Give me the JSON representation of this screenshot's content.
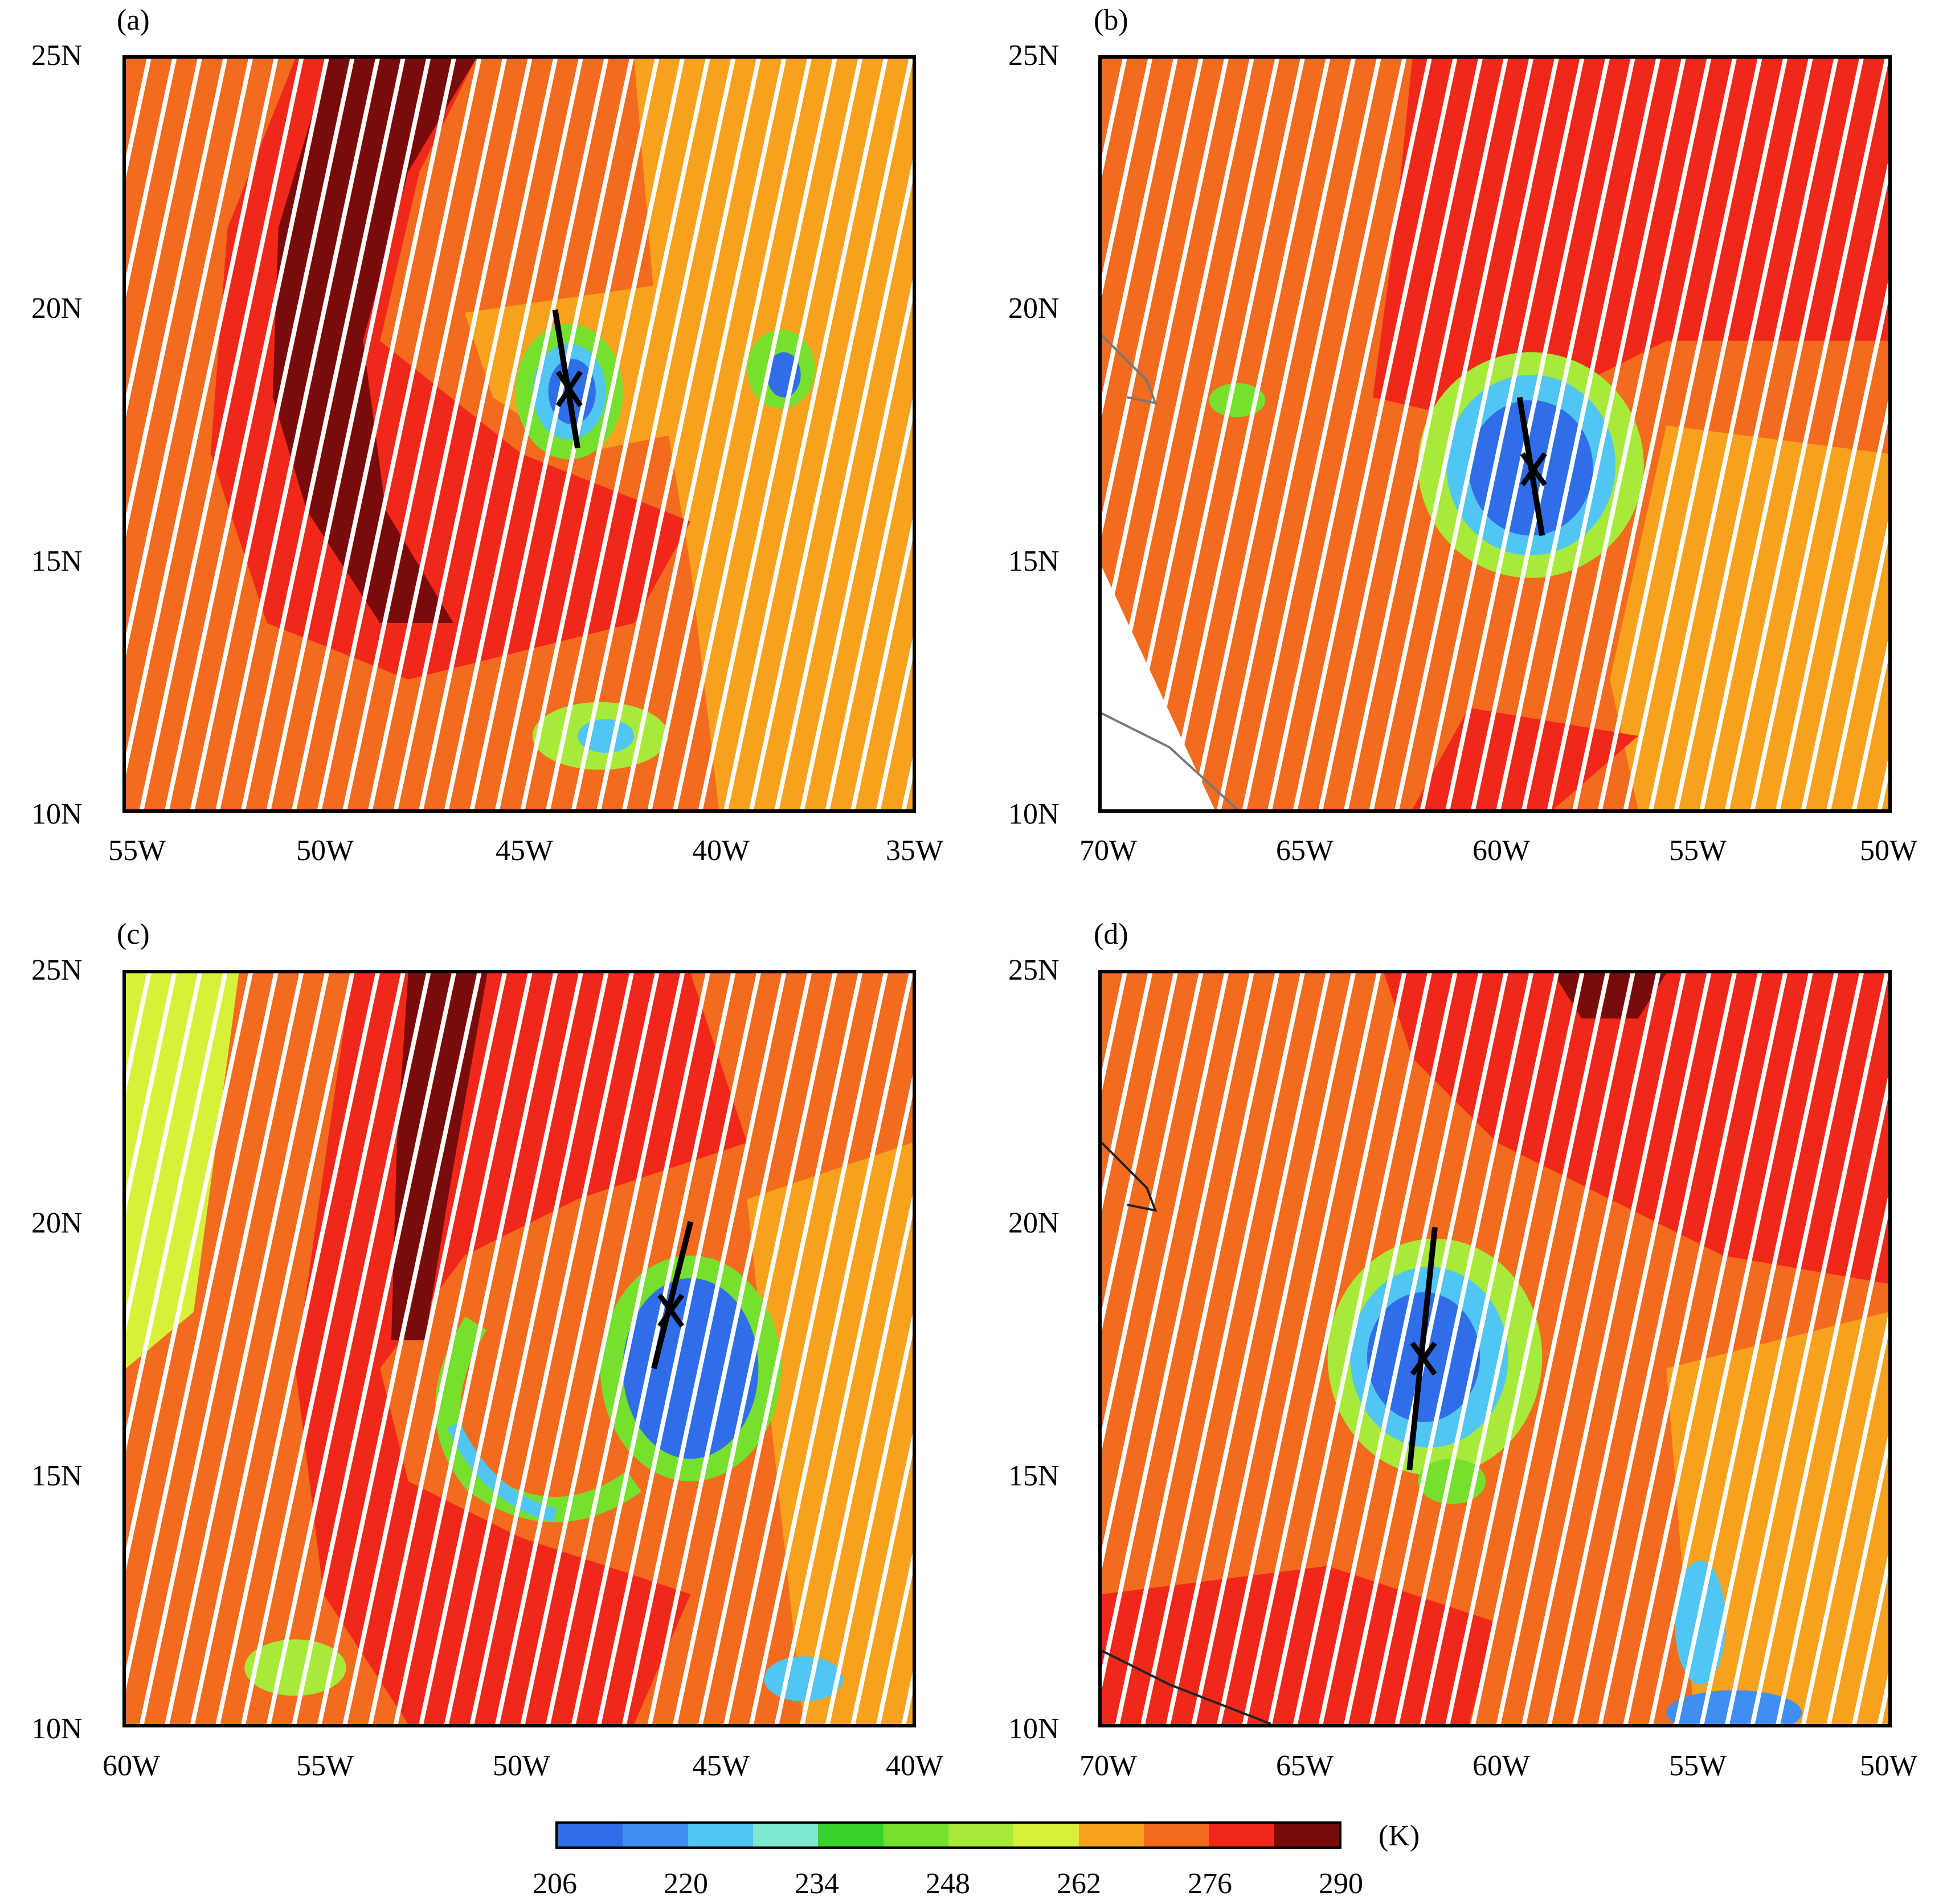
{
  "panels": [
    {
      "label": "(a)",
      "lat_ticks": [
        "25N",
        "20N",
        "15N",
        "10N"
      ],
      "lon_ticks": [
        "55W",
        "50W",
        "45W",
        "40W",
        "35W"
      ],
      "lon_range": [
        -55,
        -35
      ],
      "lat_range": [
        10,
        25
      ],
      "center": {
        "lon": -43.9,
        "lat": 18.8
      }
    },
    {
      "label": "(b)",
      "lat_ticks": [
        "25N",
        "20N",
        "15N",
        "10N"
      ],
      "lon_ticks": [
        "70W",
        "65W",
        "60W",
        "55W",
        "50W"
      ],
      "lon_range": [
        -70,
        -50
      ],
      "lat_range": [
        10,
        25
      ],
      "center": {
        "lon": -59.1,
        "lat": 16.9
      }
    },
    {
      "label": "(c)",
      "lat_ticks": [
        "25N",
        "20N",
        "15N",
        "10N"
      ],
      "lon_ticks": [
        "60W",
        "55W",
        "50W",
        "45W",
        "40W"
      ],
      "lon_range": [
        -60,
        -40
      ],
      "lat_range": [
        10,
        25
      ],
      "center": {
        "lon": -46.3,
        "lat": 18.3
      }
    },
    {
      "label": "(d)",
      "lat_ticks": [
        "25N",
        "20N",
        "15N",
        "10N"
      ],
      "lon_ticks": [
        "70W",
        "65W",
        "60W",
        "55W",
        "50W"
      ],
      "lon_range": [
        -70,
        -50
      ],
      "lat_range": [
        10,
        25
      ],
      "center": {
        "lon": -61.9,
        "lat": 17.7
      }
    }
  ],
  "colorbar": {
    "unit": "(K)",
    "tick_labels": [
      "206",
      "220",
      "234",
      "248",
      "262",
      "276",
      "290"
    ],
    "colors": [
      "#2f6ee8",
      "#3f8ff0",
      "#52c6f2",
      "#7fe8d0",
      "#39d12a",
      "#76e02f",
      "#a8ea3a",
      "#d9f03b",
      "#f7a21f",
      "#f26b1e",
      "#f0281a",
      "#7a0b0b"
    ]
  }
}
